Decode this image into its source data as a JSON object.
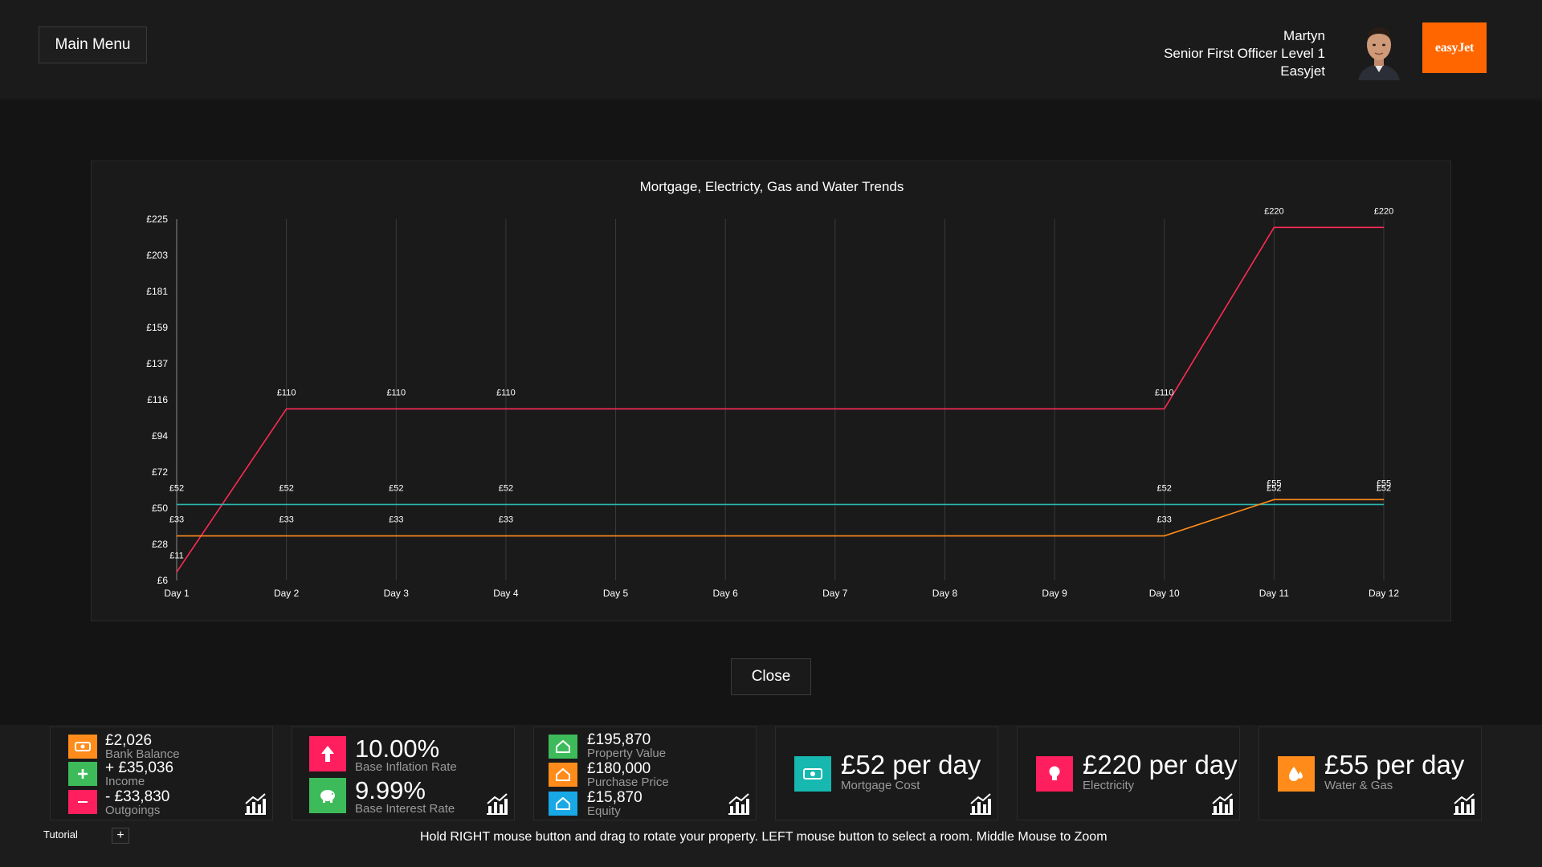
{
  "header": {
    "main_menu_label": "Main Menu",
    "user_name": "Martyn",
    "user_role": "Senior First Officer Level 1",
    "user_company": "Easyjet",
    "airline_logo_text": "easyJet"
  },
  "chart_data": {
    "type": "line",
    "title": "Mortgage, Electricty, Gas and Water Trends",
    "categories": [
      "Day 1",
      "Day 2",
      "Day 3",
      "Day 4",
      "Day 5",
      "Day 6",
      "Day 7",
      "Day 8",
      "Day 9",
      "Day 10",
      "Day 11",
      "Day 12"
    ],
    "y_ticks": [
      "£225",
      "£203",
      "£181",
      "£159",
      "£137",
      "£116",
      "£94",
      "£72",
      "£50",
      "£28",
      "£6"
    ],
    "ylim": [
      6,
      225
    ],
    "grid": "vertical",
    "series": [
      {
        "color": "#ff2a55",
        "values": [
          11,
          110,
          110,
          110,
          110,
          110,
          110,
          110,
          110,
          110,
          220,
          220
        ],
        "labels": [
          "£11",
          "£110",
          "£110",
          "£110",
          "",
          "",
          "",
          "",
          "",
          "£110",
          "£220",
          "£220"
        ]
      },
      {
        "color": "#2ab8b2",
        "values": [
          52,
          52,
          52,
          52,
          52,
          52,
          52,
          52,
          52,
          52,
          52,
          52
        ],
        "labels": [
          "£52",
          "£52",
          "£52",
          "£52",
          "",
          "",
          "",
          "",
          "",
          "£52",
          "£52",
          "£52"
        ]
      },
      {
        "color": "#ff8c1a",
        "values": [
          33,
          33,
          33,
          33,
          33,
          33,
          33,
          33,
          33,
          33,
          55,
          55
        ],
        "labels": [
          "£33",
          "£33",
          "£33",
          "£33",
          "",
          "",
          "",
          "",
          "",
          "£33",
          "£55",
          "£55"
        ]
      }
    ]
  },
  "close_label": "Close",
  "cards": {
    "finance": {
      "bank_value": "£2,026",
      "bank_label": "Bank Balance",
      "income_value": "+ £35,036",
      "income_label": "Income",
      "outgoings_value": "- £33,830",
      "outgoings_label": "Outgoings"
    },
    "rates": {
      "inflation_value": "10.00%",
      "inflation_label": "Base Inflation Rate",
      "interest_value": "9.99%",
      "interest_label": "Base Interest Rate"
    },
    "property": {
      "value": "£195,870",
      "value_label": "Property Value",
      "purchase": "£180,000",
      "purchase_label": "Purchase Price",
      "equity": "£15,870",
      "equity_label": "Equity"
    },
    "mortgage": {
      "value": "£52 per day",
      "label": "Mortgage Cost"
    },
    "electricity": {
      "value": "£220 per day",
      "label": "Electricity"
    },
    "water_gas": {
      "value": "£55 per day",
      "label": "Water & Gas"
    }
  },
  "footer": {
    "tutorial_label": "Tutorial",
    "add_label": "+",
    "hint": "Hold RIGHT mouse button and drag to rotate your property. LEFT mouse button to select a room. Middle Mouse to Zoom"
  },
  "icons": {
    "bank": "money-icon",
    "income": "plus-icon",
    "outgoings": "minus-icon",
    "inflation": "arrow-up-icon",
    "interest": "piggy-bank-icon",
    "property": "house-icon",
    "mortgage": "cash-icon",
    "electricity": "lightbulb-icon",
    "water": "water-drop-icon",
    "trend": "bar-chart-trend-icon"
  },
  "colors": {
    "accent_orange": "#ff8c1a",
    "accent_green": "#3dbb5a",
    "accent_pink": "#ff1f5e",
    "accent_blue": "#19a8e6",
    "accent_teal": "#16b8b0",
    "airline": "#ff6600"
  }
}
